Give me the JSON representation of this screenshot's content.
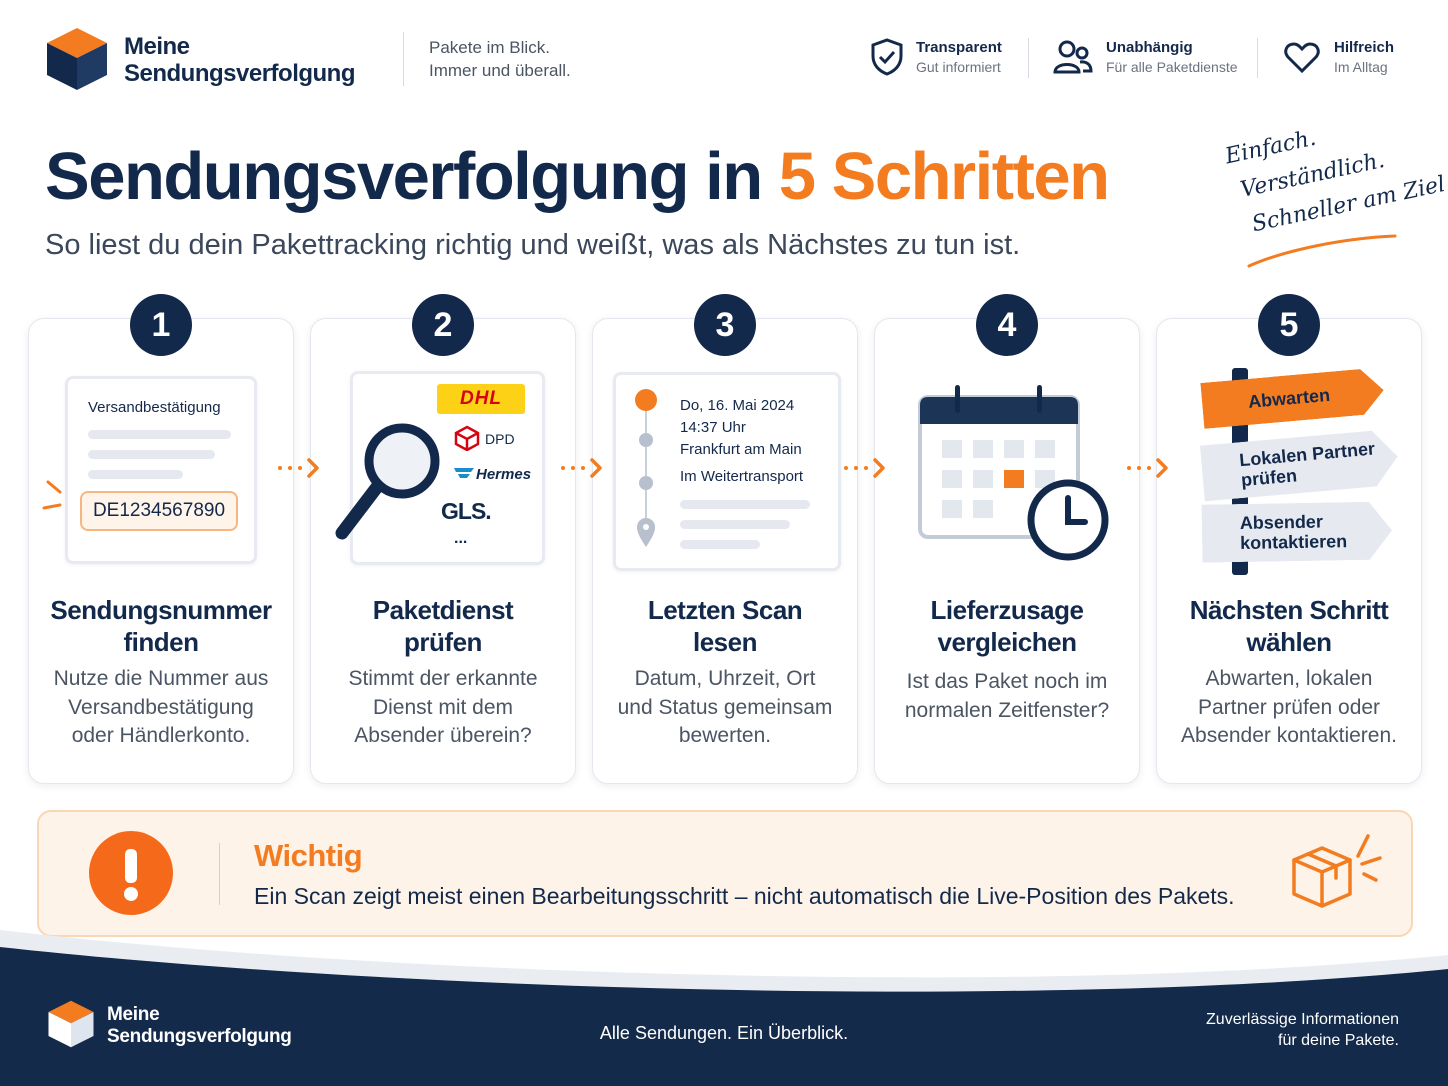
{
  "header": {
    "brand": [
      "Meine",
      "Sendungsverfolgung"
    ],
    "tagline": [
      "Pakete im Blick.",
      "Immer und überall."
    ],
    "features": [
      {
        "title": "Transparent",
        "subtitle": "Gut informiert"
      },
      {
        "title": "Unabhängig",
        "subtitle": "Für alle Paketdienste"
      },
      {
        "title": "Hilfreich",
        "subtitle": "Im Alltag"
      }
    ]
  },
  "hero": {
    "title": "Sendungsverfolgung in",
    "title_highlight": "5 Schritten",
    "subtitle": "So liest du dein Pakettracking richtig und weißt, was als Nächstes zu tun ist.",
    "note": [
      "Einfach.",
      "Verständlich.",
      "Schneller am Ziel."
    ]
  },
  "steps": [
    {
      "number": 1,
      "title": [
        "Sendungsnummer",
        "finden"
      ],
      "text": [
        "Nutze die Nummer aus",
        "Versandbestätigung",
        "oder Händlerkonto."
      ],
      "illustration": {
        "heading": "Versandbestätigung",
        "tracking_number": "DE1234567890"
      }
    },
    {
      "number": 2,
      "title": [
        "Paketdienst",
        "prüfen"
      ],
      "text": [
        "Stimmt der erkannte",
        "Dienst mit dem",
        "Absender überein?"
      ],
      "illustration": {
        "carriers": [
          "DHL",
          "DPD",
          "Hermes",
          "GLS.",
          "..."
        ]
      }
    },
    {
      "number": 3,
      "title": [
        "Letzten Scan",
        "lesen"
      ],
      "text": [
        "Datum, Uhrzeit, Ort",
        "und Status gemeinsam",
        "bewerten."
      ],
      "illustration": {
        "scan": [
          "Do, 16. Mai 2024",
          "14:37 Uhr",
          "Frankfurt am Main",
          "Im Weitertransport"
        ]
      }
    },
    {
      "number": 4,
      "title": [
        "Lieferzusage",
        "vergleichen"
      ],
      "text": [
        "Ist das Paket noch im",
        "normalen Zeitfenster?"
      ]
    },
    {
      "number": 5,
      "title": [
        "Nächsten Schritt",
        "wählen"
      ],
      "text": [
        "Abwarten, lokalen",
        "Partner prüfen oder",
        "Absender kontaktieren."
      ],
      "illustration": {
        "signs": [
          [
            "Abwarten"
          ],
          [
            "Lokalen Partner",
            "prüfen"
          ],
          [
            "Absender",
            "kontaktieren"
          ]
        ]
      }
    }
  ],
  "notice": {
    "title": "Wichtig",
    "text": "Ein Scan zeigt meist einen Bearbeitungsschritt – nicht automatisch die Live-Position des Pakets."
  },
  "footer": {
    "brand": [
      "Meine",
      "Sendungsverfolgung"
    ],
    "slogan": "Alle Sendungen. Ein Überblick.",
    "note": [
      "Zuverlässige Informationen",
      "für deine Pakete."
    ]
  }
}
